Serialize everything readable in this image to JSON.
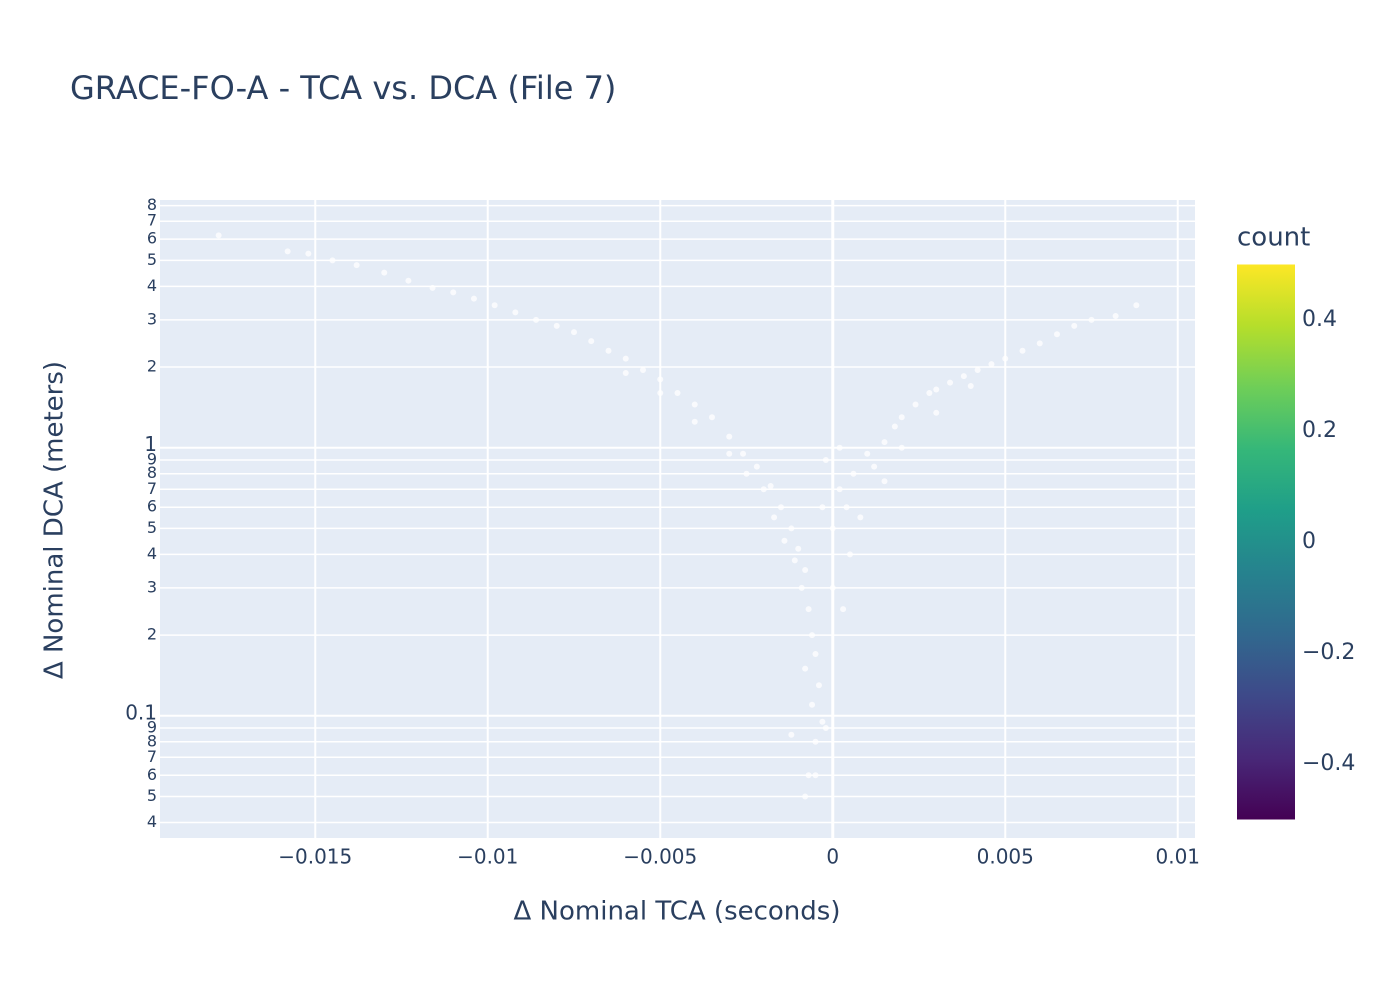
{
  "chart_data": {
    "type": "scatter",
    "title": "GRACE-FO-A - TCA vs. DCA (File 7)",
    "x_label": "Δ Nominal TCA (seconds)",
    "y_label": "Δ Nominal DCA (meters)",
    "y_scale": "log",
    "grid": true,
    "color": "#ffffff",
    "x": [
      -0.0178,
      -0.0158,
      -0.0152,
      -0.0145,
      -0.0138,
      -0.013,
      -0.0123,
      -0.0116,
      -0.011,
      -0.0104,
      -0.0098,
      -0.0092,
      -0.0086,
      -0.008,
      -0.0075,
      -0.007,
      -0.0065,
      -0.006,
      -0.0055,
      -0.005,
      -0.0045,
      -0.004,
      -0.0035,
      -0.003,
      -0.0026,
      -0.0022,
      -0.0018,
      -0.0015,
      -0.0012,
      -0.001,
      -0.0008,
      -0.006,
      -0.005,
      -0.004,
      -0.003,
      -0.0025,
      -0.002,
      -0.0017,
      -0.0014,
      -0.0011,
      -0.0009,
      -0.0007,
      -0.0006,
      -0.0005,
      -0.0008,
      -0.0004,
      -0.0006,
      -0.0003,
      -0.0005,
      -0.0007,
      -0.0005,
      -0.0008,
      -0.0012,
      -0.0002,
      0,
      0.0002,
      -0.0002,
      0.0004,
      0,
      0.0003,
      0.0005,
      -0.0003,
      0.0006,
      0.0002,
      0.0008,
      0.001,
      0.0012,
      0.0015,
      0.0018,
      0.002,
      0.0024,
      0.0028,
      0.003,
      0.0034,
      0.0038,
      0.0042,
      0.0046,
      0.005,
      0.0055,
      0.006,
      0.0065,
      0.007,
      0.0075,
      0.0082,
      0.0088,
      0.002,
      0.003,
      0.004,
      0.0015
    ],
    "values": [
      6.2,
      5.4,
      5.3,
      5.0,
      4.8,
      4.5,
      4.2,
      3.95,
      3.8,
      3.6,
      3.4,
      3.2,
      3.0,
      2.85,
      2.7,
      2.5,
      2.3,
      2.15,
      1.95,
      1.8,
      1.6,
      1.45,
      1.3,
      1.1,
      0.95,
      0.85,
      0.72,
      0.6,
      0.5,
      0.42,
      0.35,
      1.9,
      1.6,
      1.25,
      0.95,
      0.8,
      0.7,
      0.55,
      0.45,
      0.38,
      0.3,
      0.25,
      0.2,
      0.17,
      0.15,
      0.13,
      0.11,
      0.095,
      0.08,
      0.06,
      0.06,
      0.05,
      0.085,
      0.09,
      0.5,
      0.7,
      0.9,
      0.6,
      0.3,
      0.25,
      0.4,
      0.6,
      0.8,
      1.0,
      0.55,
      0.95,
      0.85,
      1.05,
      1.2,
      1.3,
      1.45,
      1.6,
      1.65,
      1.75,
      1.85,
      1.95,
      2.05,
      2.15,
      2.3,
      2.45,
      2.65,
      2.85,
      3.0,
      3.1,
      3.4,
      1.0,
      1.35,
      1.7,
      0.75
    ],
    "xlim": [
      -0.0195,
      0.0105
    ],
    "xticks": [
      {
        "value": -0.015,
        "label": "−0.015"
      },
      {
        "value": -0.01,
        "label": "−0.01"
      },
      {
        "value": -0.005,
        "label": "−0.005"
      },
      0,
      0.005,
      0.01
    ],
    "ylim": [
      0.035,
      8.4
    ],
    "yticks": [
      {
        "value": 0.04,
        "label": "4"
      },
      {
        "value": 0.05,
        "label": "5"
      },
      {
        "value": 0.06,
        "label": "6"
      },
      {
        "value": 0.07,
        "label": "7"
      },
      {
        "value": 0.08,
        "label": "8"
      },
      {
        "value": 0.09,
        "label": "9"
      },
      0.1,
      {
        "value": 0.2,
        "label": "2"
      },
      {
        "value": 0.3,
        "label": "3"
      },
      {
        "value": 0.4,
        "label": "4"
      },
      {
        "value": 0.5,
        "label": "5"
      },
      {
        "value": 0.6,
        "label": "6"
      },
      {
        "value": 0.7,
        "label": "7"
      },
      {
        "value": 0.8,
        "label": "8"
      },
      {
        "value": 0.9,
        "label": "9"
      },
      1,
      2,
      3,
      4,
      5,
      6,
      7,
      8
    ],
    "colorbar": {
      "title": "count",
      "colorscale": [
        "#440154",
        "#482878",
        "#3e4989",
        "#31688e",
        "#26828e",
        "#1f9e89",
        "#35b779",
        "#6ece58",
        "#b5de2b",
        "#fde725"
      ],
      "lim": [
        -0.5,
        0.5
      ],
      "ticks": [
        {
          "value": -0.4,
          "label": "−0.4"
        },
        {
          "value": -0.2,
          "label": "−0.2"
        },
        0,
        0.2,
        0.4
      ]
    }
  }
}
